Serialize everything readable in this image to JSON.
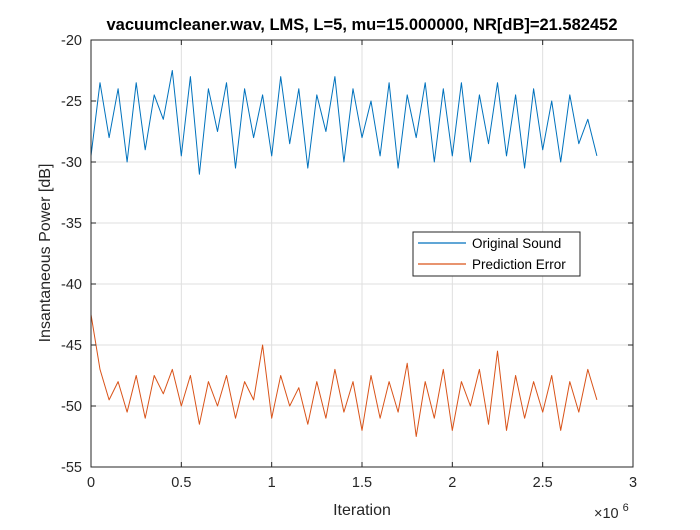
{
  "chart_data": {
    "type": "line",
    "title": "vacuumcleaner.wav, LMS, L=5, mu=15.000000, NR[dB]=21.582452",
    "xlabel": "Iteration",
    "ylabel": "Insantaneous Power [dB]",
    "xlim": [
      0,
      3000000
    ],
    "ylim": [
      -55,
      -20
    ],
    "x_tick_labels": [
      "0",
      "0.5",
      "1",
      "1.5",
      "2",
      "2.5",
      "3"
    ],
    "x_tick_values": [
      0,
      500000,
      1000000,
      1500000,
      2000000,
      2500000,
      3000000
    ],
    "x_exponent_base": "×10",
    "x_exponent_power": "6",
    "y_tick_labels": [
      "-55",
      "-50",
      "-45",
      "-40",
      "-35",
      "-30",
      "-25",
      "-20"
    ],
    "y_tick_values": [
      -55,
      -50,
      -45,
      -40,
      -35,
      -30,
      -25,
      -20
    ],
    "grid": true,
    "legend_position": "right",
    "series": [
      {
        "name": "Original Sound",
        "color": "#0072BD",
        "x_start": 0,
        "x_step": 50000,
        "values": [
          -29.5,
          -23.5,
          -28.0,
          -24.0,
          -30.0,
          -23.5,
          -29.0,
          -24.5,
          -26.5,
          -22.5,
          -29.5,
          -23.0,
          -31.0,
          -24.0,
          -27.5,
          -23.5,
          -30.5,
          -24.0,
          -28.0,
          -24.5,
          -29.5,
          -23.0,
          -28.5,
          -24.0,
          -30.5,
          -24.5,
          -27.5,
          -23.0,
          -30.0,
          -24.0,
          -28.0,
          -25.0,
          -29.5,
          -23.5,
          -30.5,
          -24.5,
          -28.0,
          -23.5,
          -30.0,
          -24.0,
          -29.5,
          -23.5,
          -30.0,
          -24.5,
          -28.5,
          -23.5,
          -29.5,
          -24.5,
          -30.5,
          -24.0,
          -29.0,
          -25.0,
          -30.0,
          -24.5,
          -28.5,
          -26.5,
          -29.5
        ]
      },
      {
        "name": "Prediction Error",
        "color": "#D95319",
        "x_start": 0,
        "x_step": 50000,
        "values": [
          -42.5,
          -47.0,
          -49.5,
          -48.0,
          -50.5,
          -47.5,
          -51.0,
          -47.5,
          -49.0,
          -47.0,
          -50.0,
          -47.5,
          -51.5,
          -48.0,
          -50.0,
          -47.5,
          -51.0,
          -48.0,
          -49.5,
          -45.0,
          -51.0,
          -47.5,
          -50.0,
          -48.5,
          -51.5,
          -48.0,
          -51.0,
          -47.0,
          -50.5,
          -48.0,
          -52.0,
          -47.5,
          -51.0,
          -48.0,
          -50.5,
          -46.5,
          -52.5,
          -48.0,
          -51.0,
          -47.0,
          -52.0,
          -48.0,
          -50.0,
          -47.0,
          -51.5,
          -45.5,
          -52.0,
          -47.5,
          -51.0,
          -48.0,
          -50.5,
          -47.5,
          -52.0,
          -48.0,
          -50.5,
          -47.0,
          -49.5
        ]
      }
    ]
  }
}
